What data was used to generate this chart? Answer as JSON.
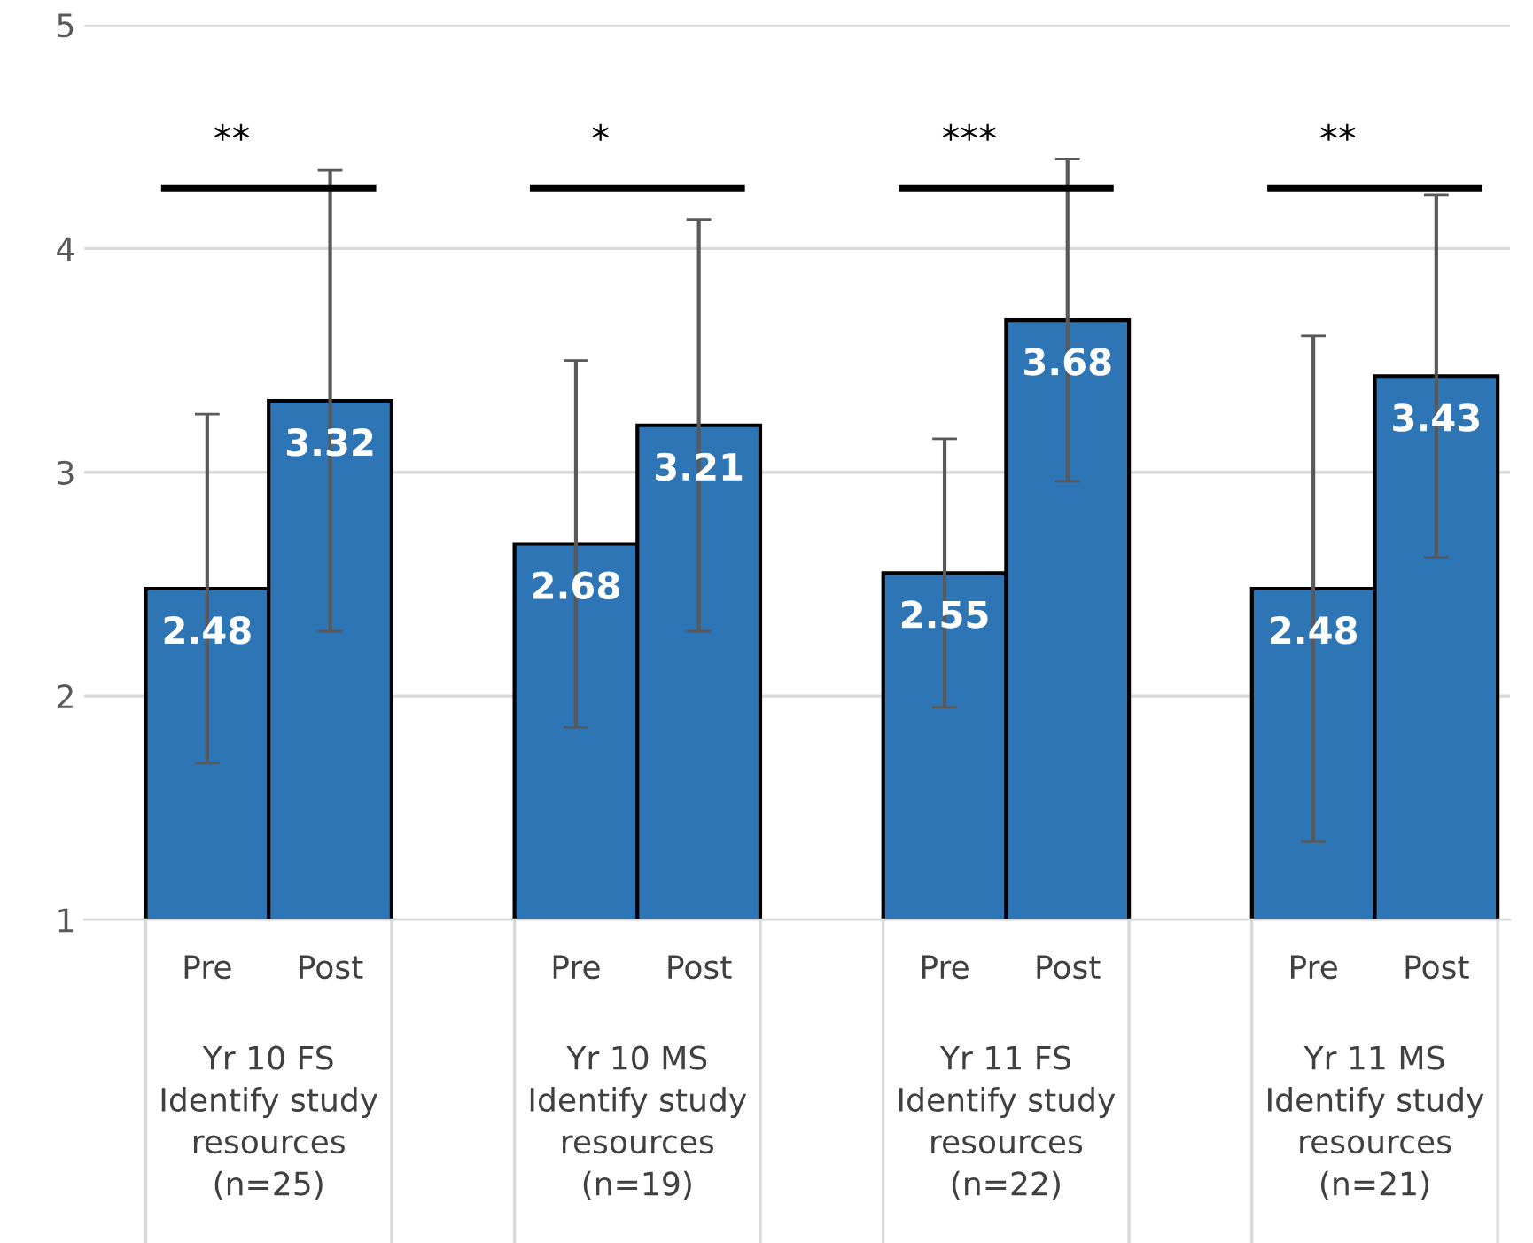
{
  "chart_data": {
    "type": "bar",
    "categories": [
      "Pre",
      "Post",
      "Pre",
      "Post",
      "Pre",
      "Post",
      "Pre",
      "Post"
    ],
    "values": [
      2.48,
      3.32,
      2.68,
      3.21,
      2.55,
      3.68,
      2.48,
      3.43
    ],
    "errors": [
      0.78,
      1.03,
      0.82,
      0.92,
      0.6,
      0.72,
      1.13,
      0.81
    ],
    "color": "#2e75b6",
    "data_labels": true,
    "ylim": [
      1,
      5
    ],
    "yticks": [
      1,
      2,
      3,
      4,
      5
    ],
    "grid": "y",
    "annotations": [
      "**",
      "*",
      "***",
      "**",
      "Yr 10 FS\nIdentify study\nresources\n(n=25)",
      "Yr 10 MS\nIdentify study\nresources\n(n=19)",
      "Yr 11 FS\nIdentify study\nresources\n(n=22)",
      "Yr 11 MS\nIdentify study\nresources\n(n=21)"
    ]
  }
}
